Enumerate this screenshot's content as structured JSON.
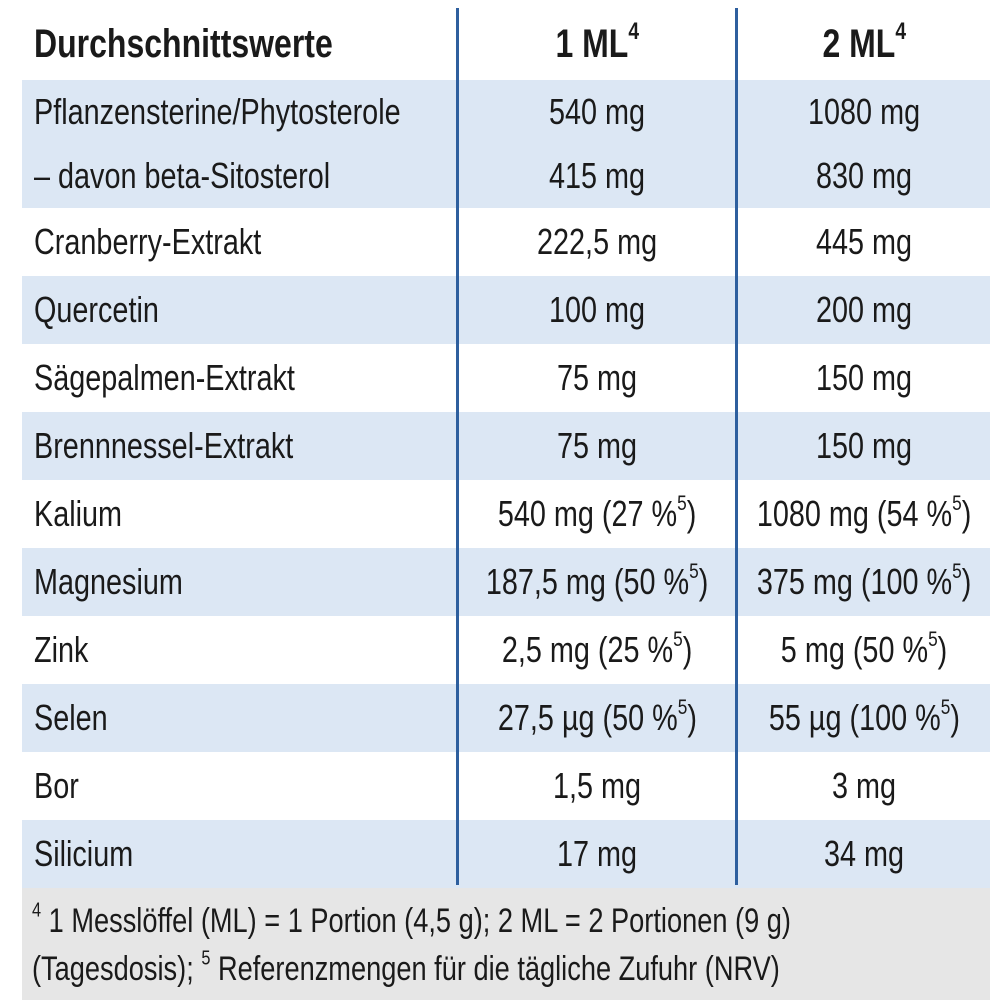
{
  "table": {
    "header": [
      [
        {
          "text": "Durchschnittswerte"
        }
      ],
      [
        {
          "text": "1 ML"
        },
        {
          "sup": "4"
        }
      ],
      [
        {
          "text": "2 ML"
        },
        {
          "sup": "4"
        }
      ]
    ],
    "rows": [
      [
        [
          {
            "text": "Pflanzensterine/Phytosterole"
          }
        ],
        [
          {
            "text": "540 mg"
          }
        ],
        [
          {
            "text": "1080 mg"
          }
        ]
      ],
      [
        [
          {
            "text": "– davon beta-Sitosterol"
          }
        ],
        [
          {
            "text": "415 mg"
          }
        ],
        [
          {
            "text": "830 mg"
          }
        ]
      ],
      [
        [
          {
            "text": "Cranberry-Extrakt"
          }
        ],
        [
          {
            "text": "222,5 mg"
          }
        ],
        [
          {
            "text": "445 mg"
          }
        ]
      ],
      [
        [
          {
            "text": "Quercetin"
          }
        ],
        [
          {
            "text": "100 mg"
          }
        ],
        [
          {
            "text": "200 mg"
          }
        ]
      ],
      [
        [
          {
            "text": "Sägepalmen-Extrakt"
          }
        ],
        [
          {
            "text": "75 mg"
          }
        ],
        [
          {
            "text": "150 mg"
          }
        ]
      ],
      [
        [
          {
            "text": "Brennnessel-Extrakt"
          }
        ],
        [
          {
            "text": "75 mg"
          }
        ],
        [
          {
            "text": "150 mg"
          }
        ]
      ],
      [
        [
          {
            "text": "Kalium"
          }
        ],
        [
          {
            "text": "540 mg (27 %"
          },
          {
            "sup": "5"
          },
          {
            "text": ")"
          }
        ],
        [
          {
            "text": "1080 mg (54 %"
          },
          {
            "sup": "5"
          },
          {
            "text": ")"
          }
        ]
      ],
      [
        [
          {
            "text": "Magnesium"
          }
        ],
        [
          {
            "text": "187,5 mg (50 %"
          },
          {
            "sup": "5"
          },
          {
            "text": ")"
          }
        ],
        [
          {
            "text": "375 mg (100 %"
          },
          {
            "sup": "5"
          },
          {
            "text": ")"
          }
        ]
      ],
      [
        [
          {
            "text": "Zink"
          }
        ],
        [
          {
            "text": "2,5 mg (25 %"
          },
          {
            "sup": "5"
          },
          {
            "text": ")"
          }
        ],
        [
          {
            "text": "5 mg (50 %"
          },
          {
            "sup": "5"
          },
          {
            "text": ")"
          }
        ]
      ],
      [
        [
          {
            "text": "Selen"
          }
        ],
        [
          {
            "text": "27,5 µg (50 %"
          },
          {
            "sup": "5"
          },
          {
            "text": ")"
          }
        ],
        [
          {
            "text": "55 µg (100 %"
          },
          {
            "sup": "5"
          },
          {
            "text": ")"
          }
        ]
      ],
      [
        [
          {
            "text": "Bor"
          }
        ],
        [
          {
            "text": "1,5 mg"
          }
        ],
        [
          {
            "text": "3 mg"
          }
        ]
      ],
      [
        [
          {
            "text": "Silicium"
          }
        ],
        [
          {
            "text": "17 mg"
          }
        ],
        [
          {
            "text": "34 mg"
          }
        ]
      ]
    ],
    "footnote": [
      [
        {
          "sup": "4"
        },
        {
          "text": " 1 Messlöffel (ML) = 1 Portion (4,5 g); 2 ML = 2 Portionen (9 g)"
        }
      ],
      [
        {
          "text": "(Tagesdosis); "
        },
        {
          "sup": "5"
        },
        {
          "text": " Referenzmengen für die tägliche Zufuhr (NRV)"
        }
      ]
    ]
  }
}
